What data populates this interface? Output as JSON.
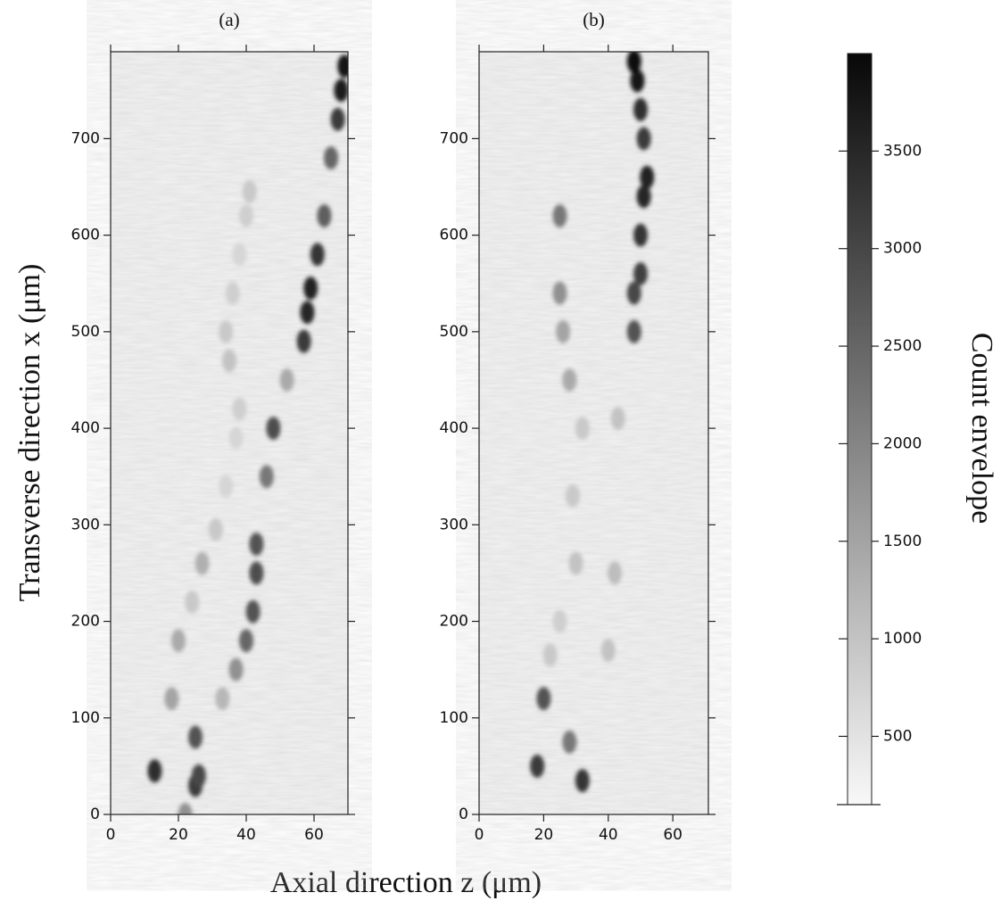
{
  "figure": {
    "xlabel": "Axial direction z (μm)",
    "ylabel": "Transverse direction x (μm)",
    "colorbar": {
      "label": "Count envelope",
      "lim": [
        150,
        4000
      ],
      "ticks": [
        500,
        1000,
        1500,
        2000,
        2500,
        3000,
        3500
      ]
    }
  },
  "chart_data": [
    {
      "type": "heatmap",
      "title": "(a)",
      "xlim": [
        0,
        70
      ],
      "ylim": [
        0,
        790
      ],
      "xticks": [
        0,
        20,
        40,
        60
      ],
      "yticks": [
        0,
        100,
        200,
        300,
        400,
        500,
        600,
        700
      ],
      "x": [
        22,
        25,
        26,
        25,
        33,
        37,
        40,
        42,
        43,
        43,
        46,
        48,
        52,
        57,
        58,
        59,
        61,
        63,
        65,
        67,
        68,
        69,
        13,
        18,
        20,
        24,
        27,
        31,
        34,
        37,
        38,
        35,
        34,
        36,
        38,
        40,
        41
      ],
      "y": [
        0,
        30,
        40,
        80,
        120,
        150,
        180,
        210,
        250,
        280,
        350,
        400,
        450,
        490,
        520,
        545,
        580,
        620,
        680,
        720,
        750,
        775,
        45,
        120,
        180,
        220,
        260,
        295,
        340,
        390,
        420,
        470,
        500,
        540,
        580,
        620,
        645
      ],
      "values": [
        1800,
        3200,
        3000,
        2800,
        1200,
        1800,
        2500,
        2800,
        2900,
        2800,
        2200,
        2900,
        1400,
        3200,
        3500,
        3600,
        3300,
        2600,
        2500,
        3200,
        3700,
        3800,
        3400,
        1500,
        1400,
        900,
        1300,
        900,
        700,
        700,
        800,
        1000,
        900,
        800,
        700,
        800,
        900
      ]
    },
    {
      "type": "heatmap",
      "title": "(b)",
      "xlim": [
        0,
        71
      ],
      "ylim": [
        0,
        790
      ],
      "xticks": [
        0,
        20,
        40,
        60
      ],
      "yticks": [
        0,
        100,
        200,
        300,
        400,
        500,
        600,
        700
      ],
      "x": [
        18,
        32,
        28,
        20,
        22,
        25,
        40,
        42,
        30,
        29,
        32,
        43,
        28,
        26,
        25,
        25,
        48,
        48,
        50,
        50,
        51,
        52,
        51,
        50,
        49,
        48
      ],
      "y": [
        50,
        35,
        75,
        120,
        165,
        200,
        170,
        250,
        260,
        330,
        400,
        410,
        450,
        500,
        540,
        620,
        500,
        540,
        560,
        600,
        640,
        660,
        700,
        730,
        760,
        780
      ],
      "values": [
        3200,
        3300,
        2200,
        2800,
        900,
        800,
        1000,
        1100,
        1000,
        900,
        900,
        1000,
        1400,
        1500,
        1800,
        2200,
        2800,
        3000,
        3100,
        3300,
        3500,
        3600,
        3200,
        3400,
        3800,
        3900
      ]
    }
  ]
}
